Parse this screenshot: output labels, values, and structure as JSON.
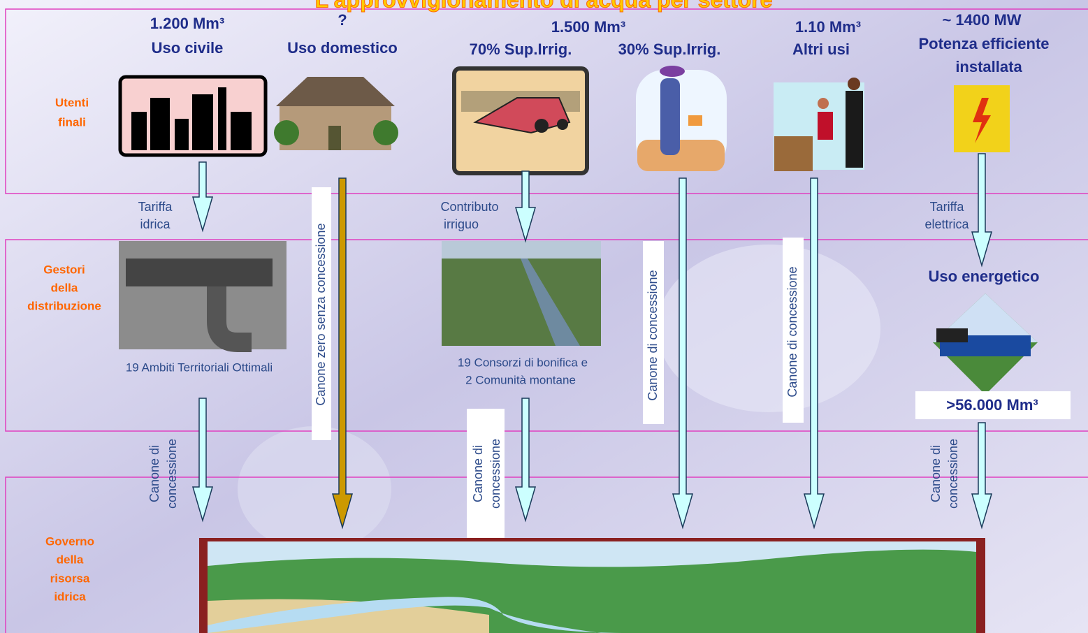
{
  "title": "L'approvvigionamento di acqua per settore",
  "rows": [
    [
      "Utenti",
      "finali"
    ],
    [
      "Gestori",
      "della",
      "distribuzione"
    ],
    [
      "Governo",
      "della",
      "risorsa",
      "idrica"
    ]
  ],
  "headers": [
    [
      "1.200 Mm³",
      "Uso civile"
    ],
    [
      "?",
      "Uso domestico"
    ],
    [
      "1.500 Mm³",
      "70% Sup.Irrig.",
      "30% Sup.Irrig."
    ],
    [
      "1.10 Mm³",
      "Altri usi"
    ],
    [
      "~ 1400 MW",
      "Potenza efficiente",
      "installata"
    ]
  ],
  "flows": [
    [
      "Tariffa",
      "idrica"
    ],
    [
      "Contributo",
      "irriguo"
    ],
    [
      "Tariffa",
      "elettrica"
    ]
  ],
  "captions": [
    [
      "19 Ambiti Territoriali Ottimali"
    ],
    [
      "19 Consorzi di bonifica e",
      "2 Comunità montane"
    ]
  ],
  "energy": {
    "label": "Uso energetico",
    "volume": ">56.000 Mm³"
  },
  "fees": {
    "zero": "Canone zero senza concessione",
    "long": "Canone di concessione",
    "short": [
      "Canone di",
      "concessione"
    ]
  }
}
